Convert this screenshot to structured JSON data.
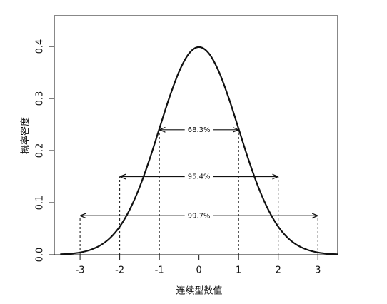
{
  "chart_data": {
    "type": "line",
    "x_label": "连续型数值",
    "y_label": "概率密度",
    "xlim": [
      -3.65,
      3.5
    ],
    "ylim": [
      0,
      0.459
    ],
    "xticks": [
      -3,
      -2,
      -1,
      0,
      1,
      2,
      3
    ],
    "yticks": [
      {
        "value": 0,
        "label": "0.0"
      },
      0.1,
      0.2,
      0.3,
      0.4
    ],
    "x": [
      -3.5,
      -3.25,
      -3,
      -2.75,
      -2.5,
      -2.25,
      -2,
      -1.75,
      -1.5,
      -1.25,
      -1,
      -0.75,
      -0.5,
      -0.25,
      0,
      0.25,
      0.5,
      0.75,
      1,
      1.25,
      1.5,
      1.75,
      2,
      2.25,
      2.5,
      2.75,
      3,
      3.25,
      3.5
    ],
    "series": [
      {
        "color": "#111111",
        "values": [
          0.0009,
          0.002,
          0.0044,
          0.0091,
          0.0175,
          0.0317,
          0.054,
          0.0863,
          0.1295,
          0.1826,
          0.242,
          0.3011,
          0.3521,
          0.3867,
          0.3989,
          0.3867,
          0.3521,
          0.3011,
          0.242,
          0.1826,
          0.1295,
          0.0863,
          0.054,
          0.0317,
          0.0175,
          0.0091,
          0.0044,
          0.002,
          0.0009
        ]
      }
    ],
    "intervals": [
      {
        "label": "68.3%",
        "from": -1,
        "to": 1,
        "y": 0.24
      },
      {
        "label": "95.4%",
        "from": -2,
        "to": 2,
        "y": 0.15
      },
      {
        "label": "99.7%",
        "from": -3,
        "to": 3,
        "y": 0.075
      }
    ]
  }
}
